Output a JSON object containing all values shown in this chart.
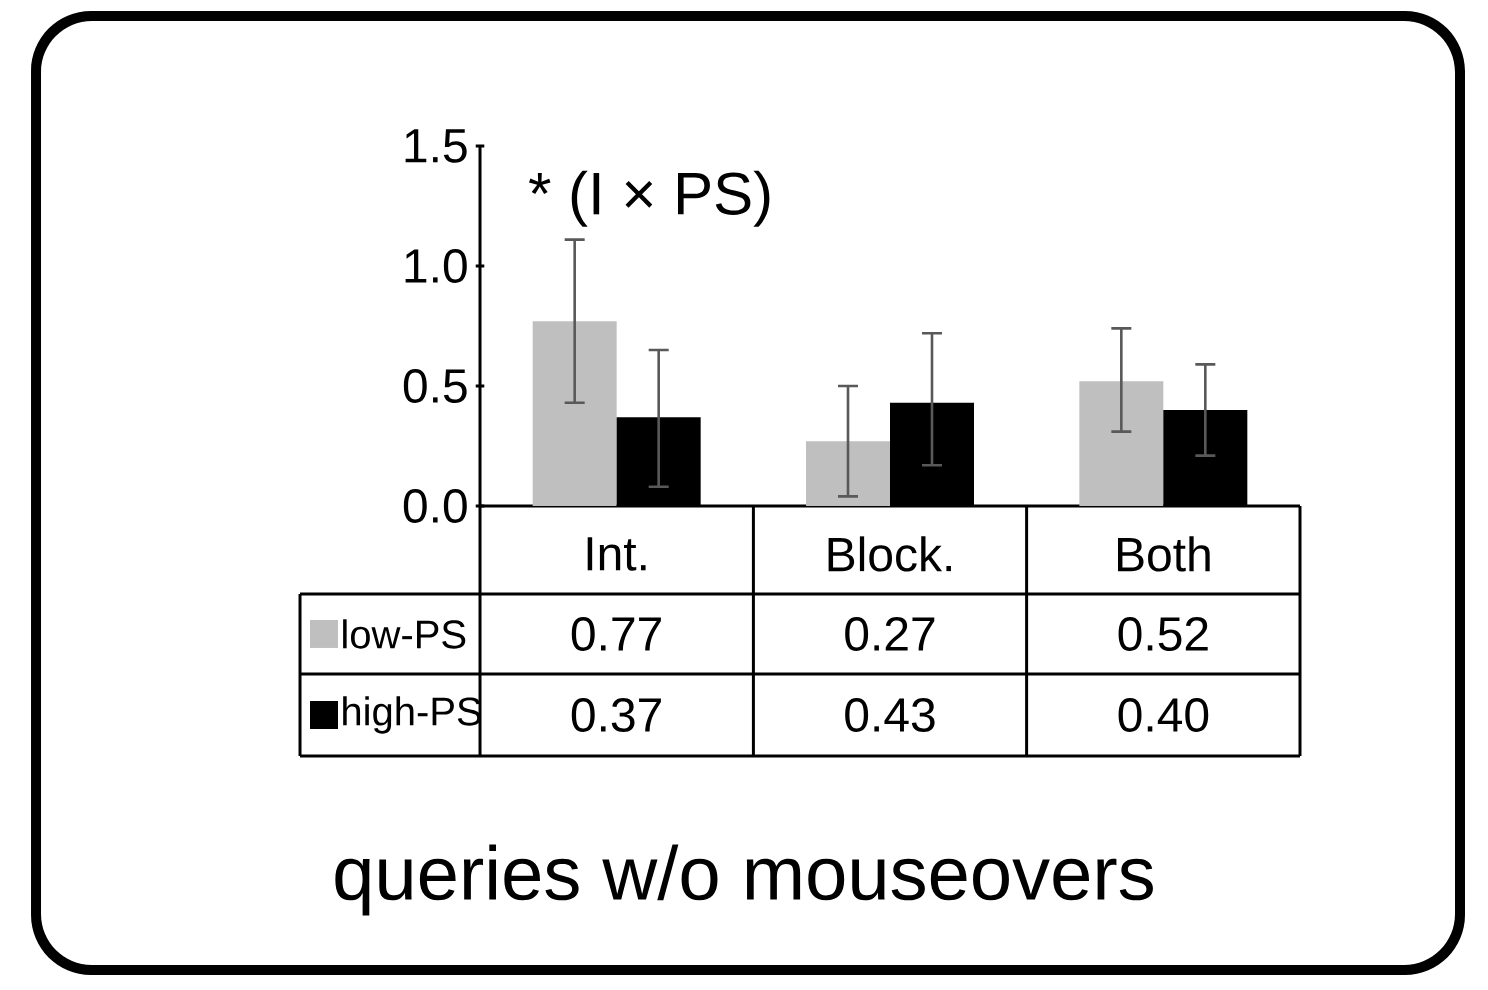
{
  "chart_data": {
    "type": "bar",
    "title": "queries w/o mouseovers",
    "annotations": [
      "* (I × PS)"
    ],
    "categories": [
      "Int.",
      "Block.",
      "Both"
    ],
    "series": [
      {
        "name": "low-PS",
        "color": "#bfbfbf",
        "values": [
          0.77,
          0.27,
          0.52
        ],
        "value_labels": [
          "0.77",
          "0.27",
          "0.52"
        ],
        "errors": [
          [
            0.43,
            1.11
          ],
          [
            0.04,
            0.5
          ],
          [
            0.31,
            0.74
          ]
        ]
      },
      {
        "name": "high-PS",
        "color": "#000000",
        "values": [
          0.37,
          0.43,
          0.4
        ],
        "value_labels": [
          "0.37",
          "0.43",
          "0.40"
        ],
        "errors": [
          [
            0.08,
            0.65
          ],
          [
            0.17,
            0.72
          ],
          [
            0.21,
            0.59
          ]
        ]
      }
    ],
    "ylim": [
      0,
      1.5
    ],
    "yticks": [
      {
        "value": 0,
        "label": "0.0"
      },
      {
        "value": 0.5,
        "label": "0.5"
      },
      {
        "value": 1,
        "label": "1.0"
      },
      {
        "value": 1.5,
        "label": "1.5"
      }
    ],
    "grid": false,
    "legend": "bottom"
  }
}
